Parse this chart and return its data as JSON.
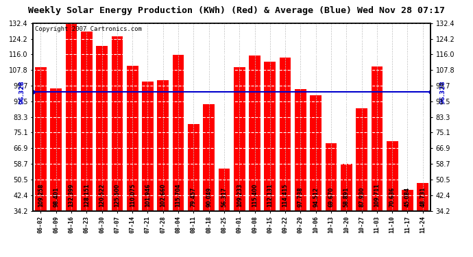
{
  "title": "Weekly Solar Energy Production (KWh) (Red) & Average (Blue) Wed Nov 28 07:17",
  "copyright": "Copyright 2007 Cartronics.com",
  "categories": [
    "06-02",
    "06-09",
    "06-16",
    "06-23",
    "06-30",
    "07-07",
    "07-14",
    "07-21",
    "07-28",
    "08-04",
    "08-11",
    "08-18",
    "08-25",
    "09-01",
    "09-08",
    "09-15",
    "09-22",
    "09-29",
    "10-06",
    "10-13",
    "10-20",
    "10-27",
    "11-03",
    "11-10",
    "11-17",
    "11-24"
  ],
  "values": [
    109.258,
    98.401,
    132.399,
    128.151,
    120.522,
    125.5,
    110.075,
    101.946,
    102.66,
    115.704,
    79.457,
    90.049,
    56.317,
    109.233,
    115.4,
    112.131,
    114.415,
    97.738,
    94.512,
    69.67,
    58.891,
    87.93,
    109.711,
    70.636,
    45.084,
    48.731
  ],
  "average": 96.328,
  "bar_color": "#ff0000",
  "avg_line_color": "#0000cc",
  "avg_label_color": "#0000cc",
  "background_color": "#ffffff",
  "title_color": "#000000",
  "copyright_color": "#000000",
  "bar_label_color": "#000000",
  "ylim": [
    34.2,
    132.4
  ],
  "yticks": [
    34.2,
    42.4,
    50.5,
    58.7,
    66.9,
    75.1,
    83.3,
    91.5,
    99.7,
    107.8,
    116.0,
    124.2,
    132.4
  ],
  "grid_color": "#c0c0c0",
  "title_fontsize": 9.5,
  "copyright_fontsize": 6.5,
  "bar_label_fontsize": 5.5,
  "avg_label_fontsize": 6.5,
  "ytick_fontsize": 7,
  "xtick_fontsize": 6
}
